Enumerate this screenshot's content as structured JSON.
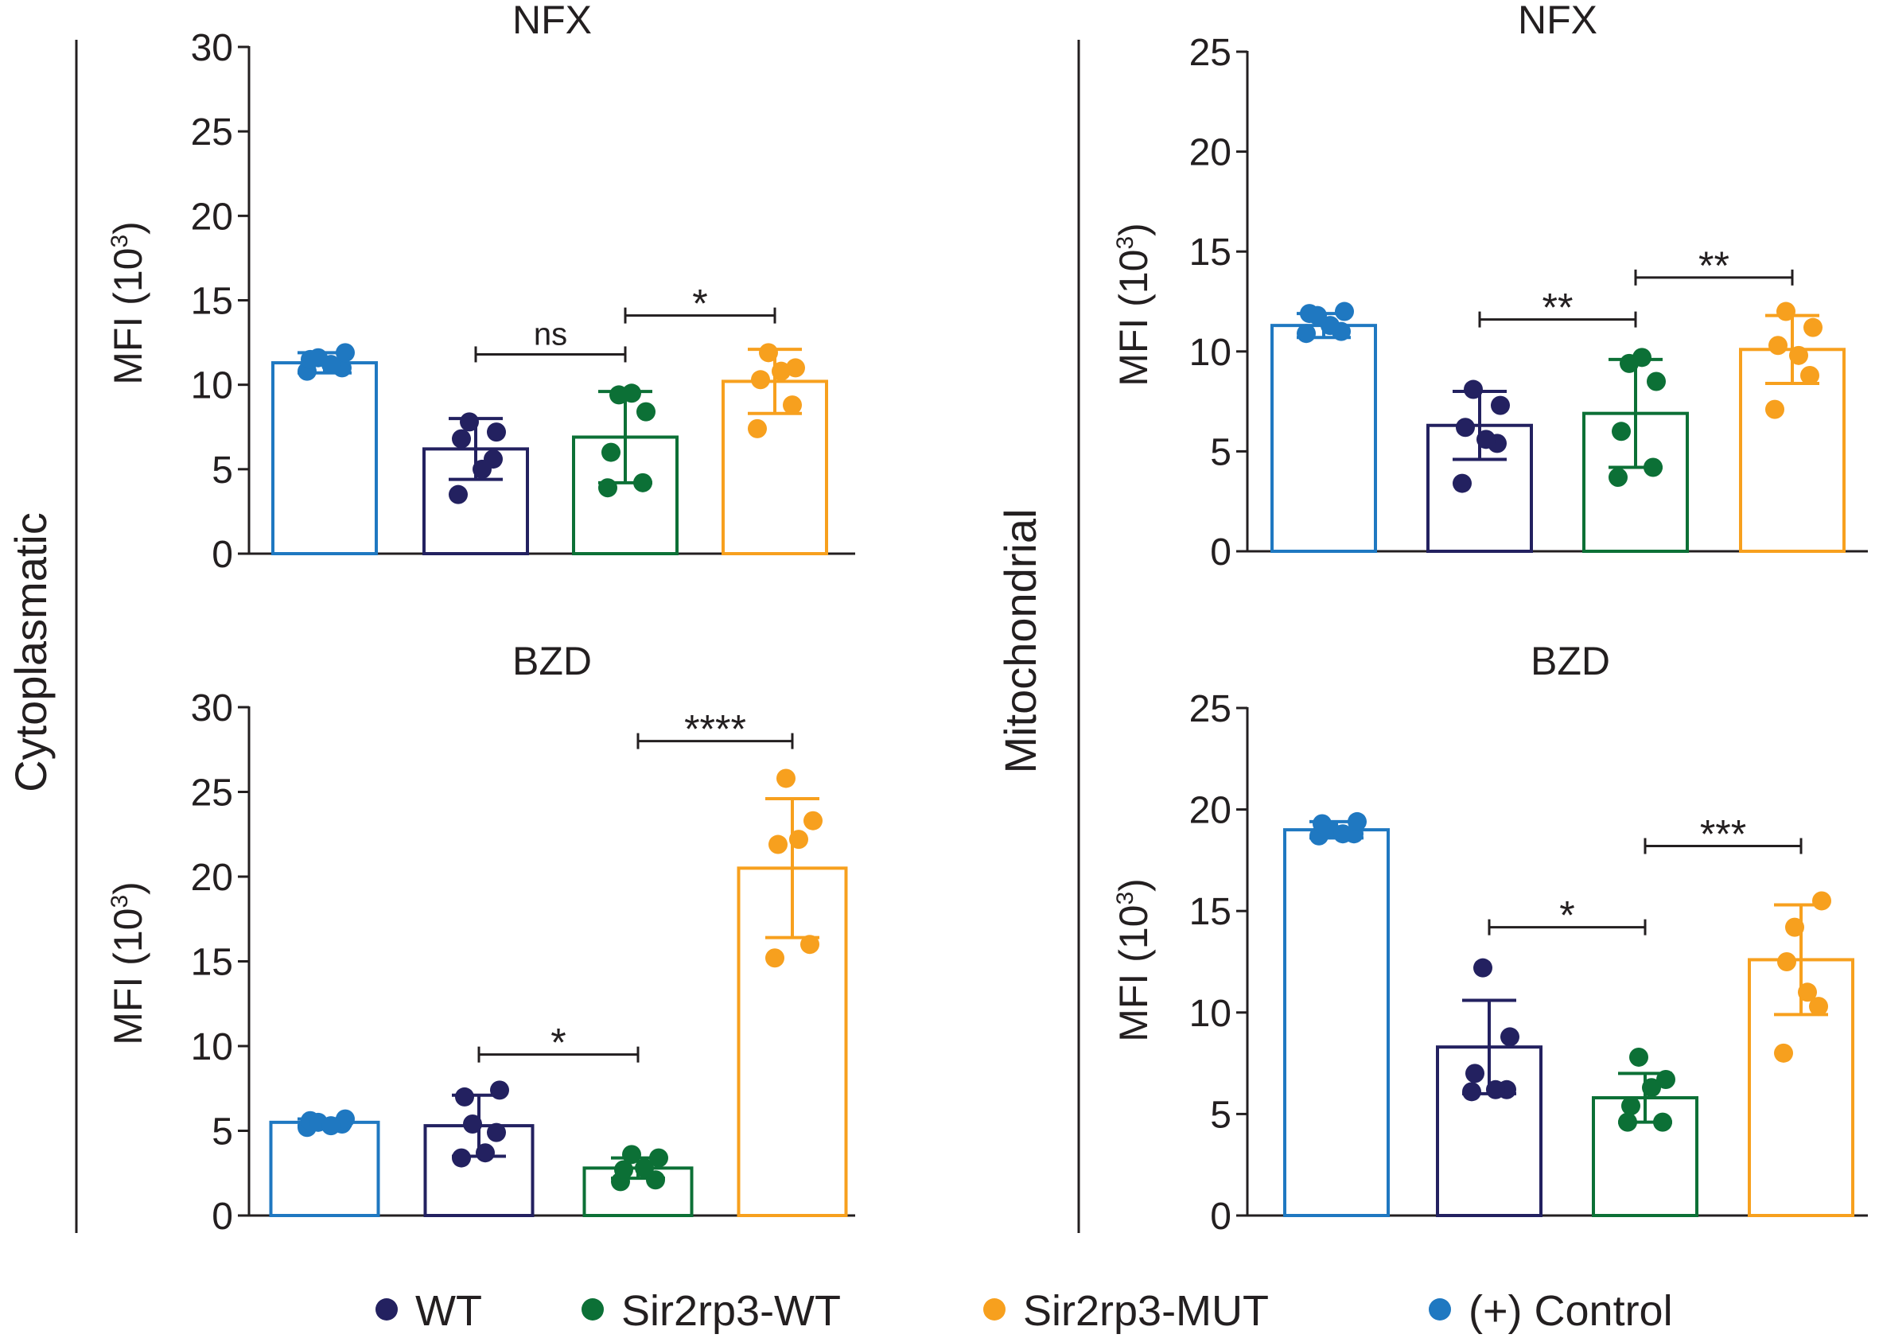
{
  "colors": {
    "control": "#1f78c1",
    "wt": "#232160",
    "sir2rp3_wt": "#0c7036",
    "sir2rp3_mut": "#f7a01e",
    "ink": "#231f20"
  },
  "row_labels": {
    "left": "Cytoplasmatic",
    "right": "Mitochondrial"
  },
  "legend": [
    {
      "label": "WT",
      "color_key": "wt"
    },
    {
      "label": "Sir2rp3-WT",
      "color_key": "sir2rp3_wt"
    },
    {
      "label": "Sir2rp3-MUT",
      "color_key": "sir2rp3_mut"
    },
    {
      "label": "(+) Control",
      "color_key": "control"
    }
  ],
  "chart_data": [
    {
      "id": "cyto-nfx",
      "type": "bar",
      "title": "NFX",
      "ylabel": "MFI (10",
      "ylabel_sup": "3",
      "ylabel_close": ")",
      "ylim": [
        0,
        30
      ],
      "yticks": [
        0,
        5,
        10,
        15,
        20,
        25,
        30
      ],
      "yticklabels": [
        "0",
        "5",
        "10",
        "15",
        "20",
        "25",
        "30"
      ],
      "categories": [
        "(+) Control",
        "WT",
        "Sir2rp3-WT",
        "Sir2rp3-MUT"
      ],
      "color_keys": [
        "control",
        "wt",
        "sir2rp3_wt",
        "sir2rp3_mut"
      ],
      "means": [
        11.3,
        6.2,
        6.9,
        10.2
      ],
      "sd": [
        0.6,
        1.8,
        2.7,
        1.9
      ],
      "points": [
        [
          10.8,
          11.0,
          11.5,
          11.9,
          11.6,
          11.2
        ],
        [
          3.5,
          5.6,
          6.8,
          7.2,
          7.8,
          5.0
        ],
        [
          3.9,
          4.2,
          6.0,
          8.4,
          9.4,
          9.5
        ],
        [
          7.4,
          8.8,
          10.3,
          11.0,
          11.9,
          10.8
        ]
      ],
      "comparisons": [
        {
          "from": 1,
          "to": 2,
          "y": 11.8,
          "label": "ns"
        },
        {
          "from": 2,
          "to": 3,
          "y": 14.1,
          "label": "*"
        }
      ]
    },
    {
      "id": "mito-nfx",
      "type": "bar",
      "title": "NFX",
      "ylabel": "MFI (10",
      "ylabel_sup": "3",
      "ylabel_close": ")",
      "ylim": [
        0,
        25
      ],
      "yticks": [
        0,
        5,
        10,
        15,
        20,
        25
      ],
      "yticklabels": [
        "0",
        "5",
        "10",
        "15",
        "20",
        "25"
      ],
      "categories": [
        "(+) Control",
        "WT",
        "Sir2rp3-WT",
        "Sir2rp3-MUT"
      ],
      "color_keys": [
        "control",
        "wt",
        "sir2rp3_wt",
        "sir2rp3_mut"
      ],
      "means": [
        11.3,
        6.3,
        6.9,
        10.1
      ],
      "sd": [
        0.6,
        1.7,
        2.7,
        1.7
      ],
      "points": [
        [
          10.9,
          11.0,
          11.9,
          12.0,
          11.8,
          11.3
        ],
        [
          3.4,
          5.4,
          6.2,
          7.3,
          8.1,
          5.6
        ],
        [
          3.7,
          4.2,
          6.0,
          8.5,
          9.4,
          9.7
        ],
        [
          7.1,
          8.8,
          10.3,
          11.2,
          12.0,
          9.8
        ]
      ],
      "comparisons": [
        {
          "from": 1,
          "to": 2,
          "y": 11.6,
          "label": "**"
        },
        {
          "from": 2,
          "to": 3,
          "y": 13.7,
          "label": "**"
        }
      ]
    },
    {
      "id": "cyto-bzd",
      "type": "bar",
      "title": "BZD",
      "ylabel": "MFI (10",
      "ylabel_sup": "3",
      "ylabel_close": ")",
      "ylim": [
        0,
        30
      ],
      "yticks": [
        0,
        5,
        10,
        15,
        20,
        25,
        30
      ],
      "yticklabels": [
        "0",
        "5",
        "10",
        "15",
        "20",
        "25",
        "30"
      ],
      "categories": [
        "(+) Control",
        "WT",
        "Sir2rp3-WT",
        "Sir2rp3-MUT"
      ],
      "color_keys": [
        "control",
        "wt",
        "sir2rp3_wt",
        "sir2rp3_mut"
      ],
      "means": [
        5.5,
        5.3,
        2.8,
        20.5
      ],
      "sd": [
        0.2,
        1.8,
        0.6,
        4.1
      ],
      "points": [
        [
          5.2,
          5.4,
          5.6,
          5.7,
          5.5,
          5.3
        ],
        [
          3.4,
          4.9,
          7.0,
          7.4,
          5.4,
          3.7
        ],
        [
          2.0,
          2.1,
          2.7,
          3.4,
          3.6,
          2.8
        ],
        [
          15.2,
          16.0,
          21.9,
          23.3,
          25.8,
          22.2
        ]
      ],
      "comparisons": [
        {
          "from": 1,
          "to": 2,
          "y": 9.5,
          "label": "*"
        },
        {
          "from": 2,
          "to": 3,
          "y": 28.0,
          "label": "****"
        }
      ]
    },
    {
      "id": "mito-bzd",
      "type": "bar",
      "title": "BZD",
      "ylabel": "MFI (10",
      "ylabel_sup": "3",
      "ylabel_close": ")",
      "ylim": [
        0,
        25
      ],
      "yticks": [
        0,
        5,
        10,
        15,
        20,
        25
      ],
      "yticklabels": [
        "0",
        "5",
        "10",
        "15",
        "20",
        "25"
      ],
      "categories": [
        "(+) Control",
        "WT",
        "Sir2rp3-WT",
        "Sir2rp3-MUT"
      ],
      "color_keys": [
        "control",
        "wt",
        "sir2rp3_wt",
        "sir2rp3_mut"
      ],
      "means": [
        19.0,
        8.3,
        5.8,
        12.6
      ],
      "sd": [
        0.4,
        2.3,
        1.2,
        2.7
      ],
      "points": [
        [
          18.7,
          18.8,
          19.3,
          19.4,
          19.0,
          18.8
        ],
        [
          6.1,
          6.2,
          7.0,
          8.8,
          12.2,
          6.2
        ],
        [
          4.6,
          4.6,
          5.4,
          6.7,
          7.8,
          6.3
        ],
        [
          8.0,
          10.3,
          12.5,
          15.5,
          14.2,
          11.0
        ]
      ],
      "comparisons": [
        {
          "from": 1,
          "to": 2,
          "y": 14.2,
          "label": "*"
        },
        {
          "from": 2,
          "to": 3,
          "y": 18.2,
          "label": "***"
        }
      ]
    }
  ]
}
